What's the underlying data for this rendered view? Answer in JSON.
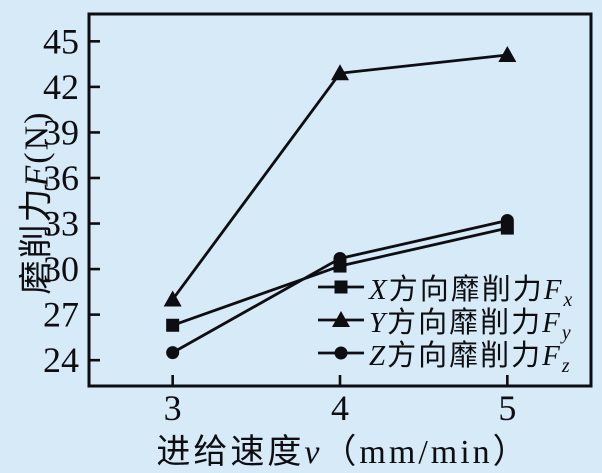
{
  "background_color": "#d7eaf8",
  "ink_color": "#0e0e12",
  "chart_data": {
    "type": "line",
    "title": "",
    "x": [
      3,
      4,
      5
    ],
    "series": [
      {
        "name": "X方向靡削力Fx",
        "marker": "square",
        "values": [
          26.3,
          30.2,
          32.7
        ]
      },
      {
        "name": "Y方向靡削力Fy",
        "marker": "triangle",
        "values": [
          28.0,
          42.9,
          44.1
        ]
      },
      {
        "name": "Z方向靡削力Fz",
        "marker": "circle",
        "values": [
          24.5,
          30.7,
          33.2
        ]
      }
    ],
    "xlabel": "进给速度v（mm/min）",
    "ylabel": "磨削力F(N)",
    "xlim": [
      2.5,
      5.5
    ],
    "ylim": [
      22.3,
      46.8
    ],
    "x_ticks": [
      3,
      4,
      5
    ],
    "y_ticks": [
      24,
      27,
      30,
      33,
      36,
      39,
      42,
      45
    ],
    "grid": false,
    "legend_position": "inside lower right",
    "line_color": "#0e0e12"
  },
  "axes": {
    "y_label_prefix": "磨削力",
    "y_label_symbol": "F",
    "y_label_unit": "(N)",
    "x_label_prefix": "进给速度",
    "x_label_symbol": "v",
    "x_label_unit": "（mm/min）"
  },
  "legend": {
    "items": [
      {
        "prefix": "X",
        "text": "方向靡削力",
        "symbol": "F",
        "subscript": "x",
        "marker": "square"
      },
      {
        "prefix": "Y",
        "text": "方向靡削力",
        "symbol": "F",
        "subscript": "y",
        "marker": "triangle"
      },
      {
        "prefix": "Z",
        "text": "方向靡削力",
        "symbol": "F",
        "subscript": "z",
        "marker": "circle"
      }
    ]
  }
}
